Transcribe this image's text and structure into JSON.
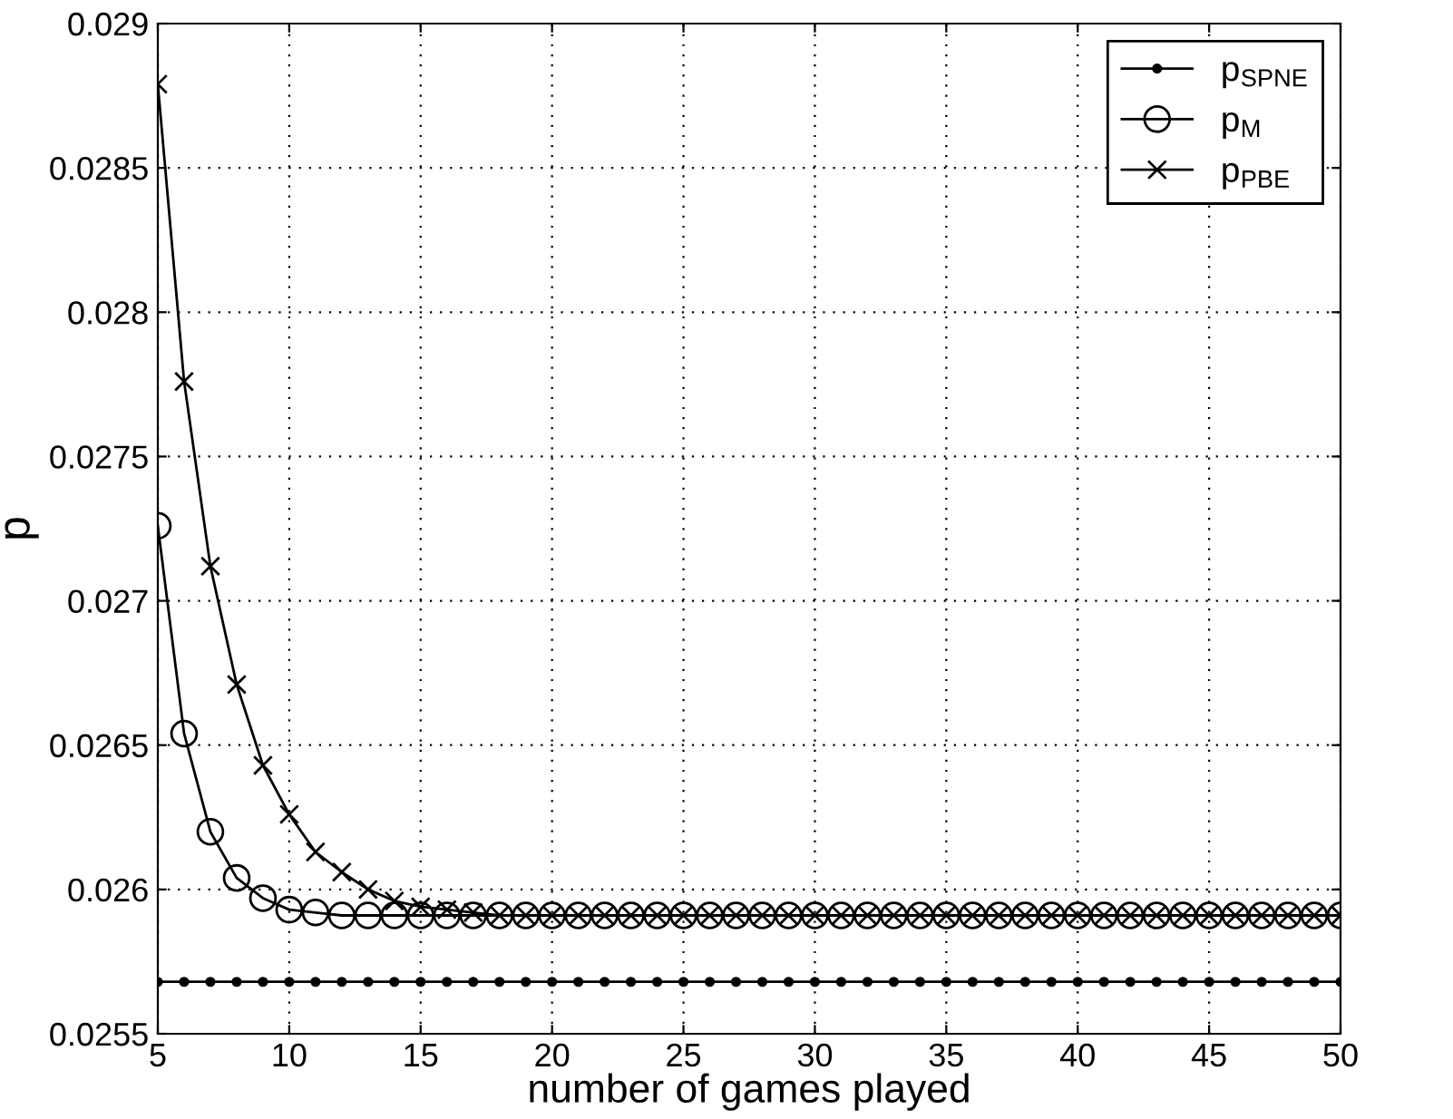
{
  "chart_data": {
    "type": "line",
    "xlabel": "number of games played",
    "ylabel": "p",
    "x": [
      5,
      6,
      7,
      8,
      9,
      10,
      11,
      12,
      13,
      14,
      15,
      16,
      17,
      18,
      19,
      20,
      21,
      22,
      23,
      24,
      25,
      26,
      27,
      28,
      29,
      30,
      31,
      32,
      33,
      34,
      35,
      36,
      37,
      38,
      39,
      40,
      41,
      42,
      43,
      44,
      45,
      46,
      47,
      48,
      49,
      50
    ],
    "series": [
      {
        "name": "p$_{SPNE}$",
        "color": "#000000",
        "marker": "dot",
        "values": [
          0.02568,
          0.02568,
          0.02568,
          0.02568,
          0.02568,
          0.02568,
          0.02568,
          0.02568,
          0.02568,
          0.02568,
          0.02568,
          0.02568,
          0.02568,
          0.02568,
          0.02568,
          0.02568,
          0.02568,
          0.02568,
          0.02568,
          0.02568,
          0.02568,
          0.02568,
          0.02568,
          0.02568,
          0.02568,
          0.02568,
          0.02568,
          0.02568,
          0.02568,
          0.02568,
          0.02568,
          0.02568,
          0.02568,
          0.02568,
          0.02568,
          0.02568,
          0.02568,
          0.02568,
          0.02568,
          0.02568,
          0.02568,
          0.02568,
          0.02568,
          0.02568,
          0.02568,
          0.02568
        ]
      },
      {
        "name": "p$_{M}$",
        "color": "#000000",
        "marker": "circle",
        "values": [
          0.02726,
          0.02654,
          0.0262,
          0.02604,
          0.02597,
          0.02593,
          0.02592,
          0.02591,
          0.02591,
          0.02591,
          0.02591,
          0.02591,
          0.02591,
          0.02591,
          0.02591,
          0.02591,
          0.02591,
          0.02591,
          0.02591,
          0.02591,
          0.02591,
          0.02591,
          0.02591,
          0.02591,
          0.02591,
          0.02591,
          0.02591,
          0.02591,
          0.02591,
          0.02591,
          0.02591,
          0.02591,
          0.02591,
          0.02591,
          0.02591,
          0.02591,
          0.02591,
          0.02591,
          0.02591,
          0.02591,
          0.02591,
          0.02591,
          0.02591,
          0.02591,
          0.02591,
          0.02591
        ]
      },
      {
        "name": "p$_{PBE}$",
        "color": "#000000",
        "marker": "cross",
        "values": [
          0.02879,
          0.02776,
          0.02712,
          0.02671,
          0.02643,
          0.02626,
          0.02613,
          0.02606,
          0.026,
          0.02596,
          0.02594,
          0.02593,
          0.02592,
          0.02591,
          0.02591,
          0.02591,
          0.02591,
          0.02591,
          0.02591,
          0.02591,
          0.02591,
          0.02591,
          0.02591,
          0.02591,
          0.02591,
          0.02591,
          0.02591,
          0.02591,
          0.02591,
          0.02591,
          0.02591,
          0.02591,
          0.02591,
          0.02591,
          0.02591,
          0.02591,
          0.02591,
          0.02591,
          0.02591,
          0.02591,
          0.02591,
          0.02591,
          0.02591,
          0.02591,
          0.02591,
          0.02591
        ]
      }
    ],
    "xlim": [
      5,
      50
    ],
    "xticks": [
      5,
      10,
      15,
      20,
      25,
      30,
      35,
      40,
      45,
      50
    ],
    "ylim": [
      0.0255,
      0.029
    ],
    "yticks": [
      0.0255,
      0.026,
      0.0265,
      0.027,
      0.0275,
      0.028,
      0.0285,
      0.029
    ],
    "grid": true,
    "legend": "top right",
    "line_style": "solid"
  }
}
